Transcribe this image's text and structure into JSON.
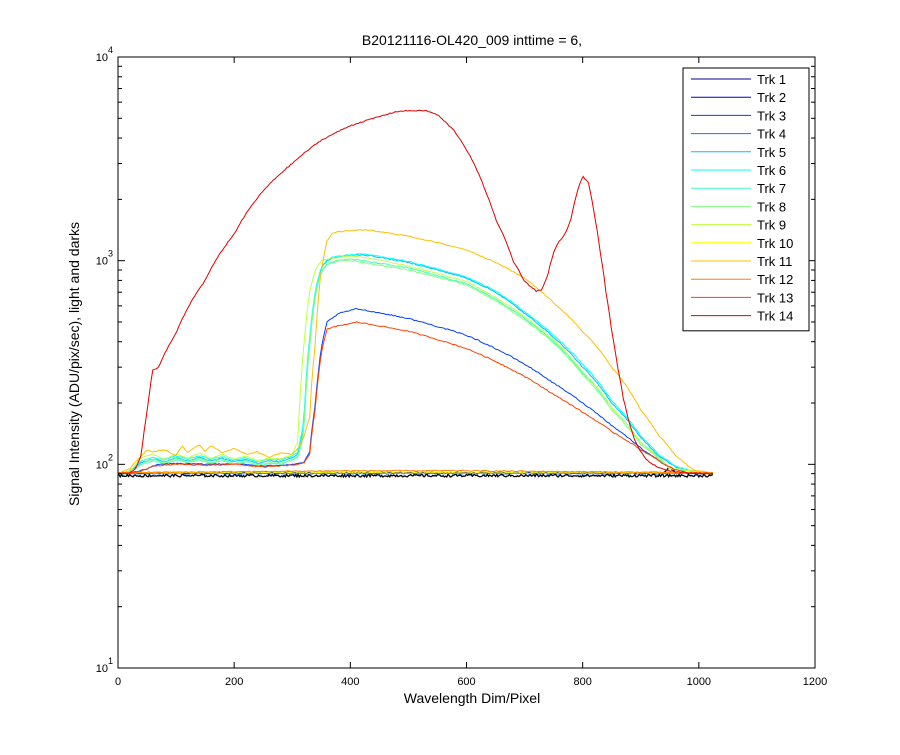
{
  "chart_data": {
    "type": "line",
    "title": "B20121116-OL420_009 inttime = 6,",
    "xlabel": "Wavelength Dim/Pixel",
    "ylabel": "Signal Intensity (ADU/pix/sec), light and darks",
    "xlim": [
      0,
      1200
    ],
    "ylim": [
      10,
      10000
    ],
    "yscale": "log",
    "grid": false,
    "legend_position": "top-right",
    "x_ticks": [
      "0",
      "200",
      "400",
      "600",
      "800",
      "1000",
      "1200"
    ],
    "y_ticks": [
      {
        "value": 10,
        "base": "10",
        "exp": "1"
      },
      {
        "value": 100,
        "base": "10",
        "exp": "2"
      },
      {
        "value": 1000,
        "base": "10",
        "exp": "3"
      },
      {
        "value": 10000,
        "base": "10",
        "exp": "4"
      }
    ],
    "series": [
      {
        "name": "Trk 1",
        "color": "#00008f",
        "x": [
          0,
          20,
          30,
          50,
          100,
          200,
          300,
          320,
          340,
          360,
          400,
          600,
          800,
          900,
          940,
          950,
          960,
          1024
        ],
        "y": [
          90,
          90,
          91,
          91,
          91,
          91,
          91,
          91,
          91,
          91,
          91,
          91,
          91,
          91,
          91,
          98,
          91,
          90
        ]
      },
      {
        "name": "Trk 2",
        "color": "#0000bf",
        "x": [
          0,
          20,
          30,
          50,
          100,
          200,
          300,
          320,
          340,
          360,
          400,
          600,
          800,
          900,
          940,
          950,
          960,
          1024
        ],
        "y": [
          90,
          90,
          91,
          91,
          91,
          91,
          91,
          91,
          91,
          91,
          91,
          91,
          91,
          91,
          91,
          96,
          91,
          90
        ]
      },
      {
        "name": "Trk 3",
        "color": "#0040ff",
        "x": [
          0,
          20,
          30,
          50,
          70,
          100,
          150,
          200,
          250,
          300,
          320,
          330,
          340,
          350,
          360,
          380,
          400,
          410,
          420,
          500,
          600,
          700,
          750,
          800,
          850,
          900,
          940,
          960,
          980,
          1024
        ],
        "y": [
          90,
          90,
          92,
          95,
          100,
          101,
          100,
          101,
          98,
          100,
          102,
          115,
          200,
          370,
          500,
          550,
          570,
          580,
          575,
          520,
          430,
          310,
          250,
          200,
          155,
          120,
          100,
          94,
          91,
          90
        ]
      },
      {
        "name": "Trk 4",
        "color": "#0080ff",
        "x": [
          0,
          1024
        ],
        "y": [
          90,
          90
        ]
      },
      {
        "name": "Trk 5",
        "color": "#00bfff",
        "x": [
          0,
          20,
          40,
          60,
          80,
          100,
          120,
          140,
          160,
          180,
          200,
          220,
          240,
          260,
          280,
          300,
          310,
          320,
          330,
          340,
          350,
          360,
          370,
          380,
          400,
          420,
          440,
          500,
          600,
          650,
          700,
          750,
          800,
          850,
          900,
          930,
          960,
          990,
          1024
        ],
        "y": [
          90,
          92,
          102,
          106,
          103,
          108,
          104,
          108,
          104,
          107,
          103,
          106,
          101,
          104,
          103,
          108,
          112,
          150,
          400,
          700,
          920,
          1000,
          1030,
          1040,
          1060,
          1070,
          1050,
          980,
          820,
          700,
          550,
          420,
          300,
          200,
          135,
          110,
          97,
          92,
          90
        ]
      },
      {
        "name": "Trk 6",
        "color": "#00ffff",
        "x": [
          0,
          20,
          40,
          60,
          80,
          100,
          120,
          140,
          160,
          180,
          200,
          220,
          240,
          260,
          280,
          300,
          310,
          320,
          330,
          340,
          350,
          360,
          370,
          380,
          400,
          420,
          440,
          500,
          600,
          650,
          700,
          750,
          800,
          850,
          900,
          930,
          960,
          990,
          1024
        ],
        "y": [
          90,
          93,
          104,
          108,
          105,
          110,
          106,
          110,
          106,
          109,
          105,
          108,
          103,
          106,
          105,
          110,
          115,
          160,
          420,
          720,
          930,
          1010,
          1040,
          1050,
          1070,
          1080,
          1060,
          990,
          830,
          710,
          560,
          430,
          310,
          205,
          138,
          112,
          98,
          92,
          90
        ]
      },
      {
        "name": "Trk 7",
        "color": "#40ffbf",
        "x": [
          0,
          20,
          40,
          60,
          80,
          100,
          120,
          140,
          160,
          180,
          200,
          220,
          240,
          260,
          280,
          300,
          310,
          320,
          330,
          340,
          350,
          360,
          380,
          400,
          420,
          440,
          500,
          600,
          700,
          800,
          850,
          900,
          950,
          1024
        ],
        "y": [
          90,
          90,
          100,
          104,
          101,
          105,
          102,
          105,
          101,
          104,
          100,
          103,
          99,
          101,
          100,
          105,
          108,
          140,
          380,
          680,
          880,
          960,
          1000,
          1020,
          1000,
          980,
          920,
          770,
          520,
          280,
          190,
          128,
          96,
          90
        ]
      },
      {
        "name": "Trk 8",
        "color": "#80ff80",
        "x": [
          0,
          20,
          40,
          60,
          80,
          100,
          120,
          140,
          160,
          180,
          200,
          220,
          240,
          260,
          280,
          300,
          310,
          320,
          330,
          340,
          350,
          360,
          380,
          400,
          420,
          440,
          500,
          600,
          700,
          800,
          850,
          900,
          950,
          1024
        ],
        "y": [
          90,
          90,
          101,
          106,
          102,
          107,
          103,
          107,
          102,
          106,
          101,
          104,
          100,
          102,
          101,
          106,
          110,
          145,
          390,
          690,
          890,
          970,
          1010,
          1000,
          980,
          960,
          900,
          760,
          510,
          275,
          185,
          125,
          95,
          90
        ]
      },
      {
        "name": "Trk 9",
        "color": "#bfff40",
        "x": [
          0,
          20,
          40,
          60,
          80,
          100,
          120,
          140,
          160,
          180,
          200,
          220,
          240,
          260,
          280,
          300,
          310,
          320,
          330,
          340,
          350,
          360,
          370,
          380,
          400,
          420,
          440,
          500,
          600,
          700,
          800,
          850,
          900,
          950,
          1024
        ],
        "y": [
          90,
          92,
          108,
          112,
          106,
          113,
          107,
          114,
          107,
          112,
          106,
          110,
          104,
          107,
          106,
          112,
          130,
          380,
          700,
          900,
          1000,
          1020,
          1030,
          1040,
          1050,
          1040,
          1020,
          940,
          790,
          530,
          285,
          190,
          128,
          96,
          90
        ]
      },
      {
        "name": "Trk 10",
        "color": "#ffff00",
        "x": [
          0,
          1024
        ],
        "y": [
          91,
          91
        ]
      },
      {
        "name": "Trk 11",
        "color": "#ffbf00",
        "x": [
          0,
          20,
          40,
          50,
          60,
          80,
          100,
          110,
          120,
          140,
          150,
          160,
          180,
          200,
          220,
          240,
          260,
          280,
          300,
          310,
          320,
          330,
          340,
          350,
          360,
          370,
          380,
          400,
          420,
          440,
          500,
          600,
          650,
          700,
          750,
          800,
          850,
          900,
          930,
          960,
          990,
          1024
        ],
        "y": [
          90,
          95,
          110,
          118,
          115,
          118,
          110,
          123,
          114,
          125,
          116,
          124,
          114,
          120,
          112,
          115,
          108,
          114,
          112,
          120,
          135,
          170,
          400,
          900,
          1250,
          1370,
          1390,
          1400,
          1420,
          1400,
          1320,
          1130,
          980,
          820,
          620,
          450,
          300,
          185,
          140,
          110,
          94,
          90
        ]
      },
      {
        "name": "Trk 12",
        "color": "#ff8000",
        "x": [
          0,
          200,
          400,
          600,
          800,
          1000,
          1024
        ],
        "y": [
          91,
          92,
          93,
          93,
          92,
          91,
          91
        ]
      },
      {
        "name": "Trk 13",
        "color": "#ff4000",
        "x": [
          0,
          20,
          40,
          60,
          80,
          100,
          150,
          200,
          250,
          300,
          320,
          330,
          340,
          350,
          360,
          380,
          400,
          410,
          420,
          500,
          600,
          700,
          750,
          800,
          850,
          900,
          940,
          960,
          980,
          1024
        ],
        "y": [
          90,
          90,
          93,
          98,
          99,
          100,
          99,
          100,
          97,
          99,
          101,
          112,
          190,
          350,
          460,
          480,
          490,
          500,
          495,
          450,
          370,
          270,
          220,
          180,
          145,
          118,
          100,
          94,
          91,
          90
        ]
      },
      {
        "name": "Trk 14",
        "color": "#df0000",
        "x": [
          0,
          20,
          30,
          40,
          50,
          60,
          70,
          100,
          150,
          200,
          250,
          300,
          350,
          400,
          450,
          480,
          500,
          530,
          550,
          580,
          600,
          630,
          650,
          680,
          700,
          720,
          730,
          740,
          750,
          760,
          770,
          780,
          790,
          800,
          810,
          820,
          830,
          840,
          850,
          860,
          870,
          880,
          890,
          900,
          910,
          920,
          940,
          960,
          980,
          1024
        ],
        "y": [
          90,
          91,
          95,
          110,
          180,
          290,
          300,
          440,
          800,
          1350,
          2200,
          3000,
          3900,
          4600,
          5100,
          5400,
          5450,
          5450,
          5200,
          4300,
          3500,
          2300,
          1600,
          1000,
          790,
          710,
          720,
          850,
          1100,
          1250,
          1350,
          1600,
          2150,
          2600,
          2400,
          1700,
          1100,
          700,
          450,
          300,
          210,
          160,
          130,
          115,
          105,
          100,
          94,
          92,
          91,
          90
        ]
      }
    ]
  }
}
